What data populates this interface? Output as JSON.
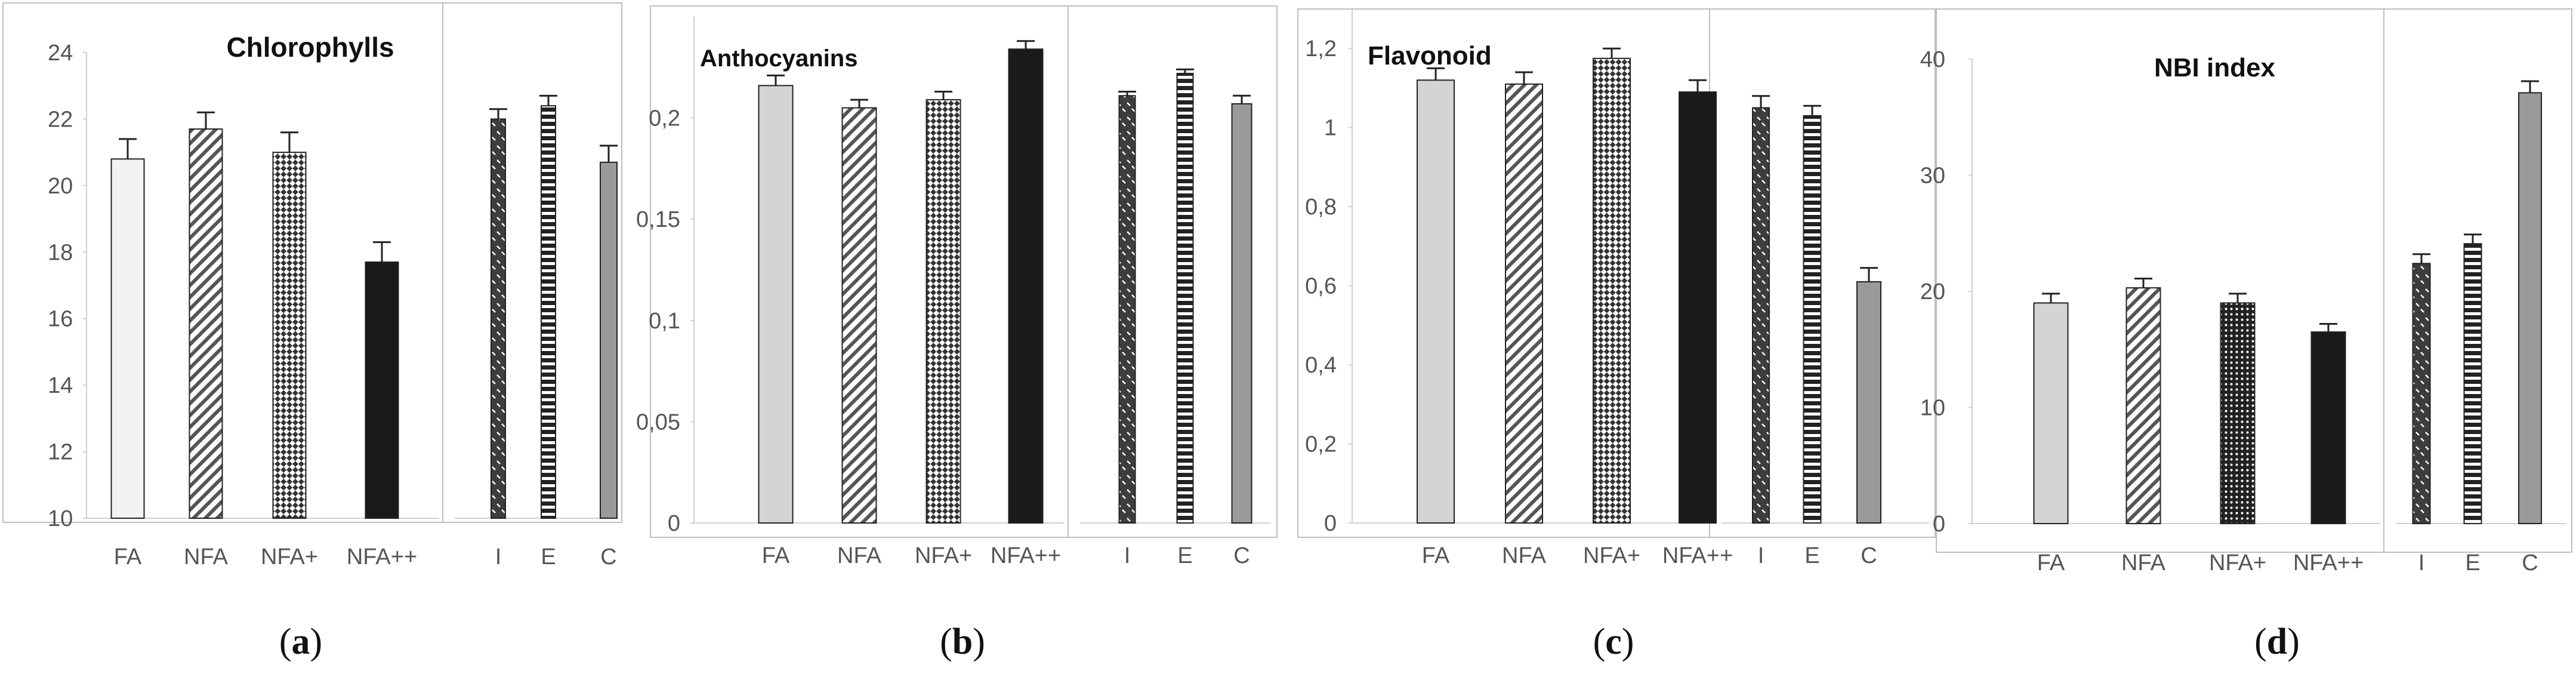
{
  "figure": {
    "captions": [
      "a",
      "b",
      "c",
      "d"
    ]
  },
  "chart_data": [
    {
      "type": "bar",
      "title": "Chlorophylls",
      "xlabel": "",
      "ylabel": "",
      "ylim": [
        10,
        24
      ],
      "yticks": [
        10,
        12,
        14,
        16,
        18,
        20,
        22,
        24
      ],
      "ytick_labels": [
        "10",
        "12",
        "14",
        "16",
        "18",
        "20",
        "22",
        "24"
      ],
      "groups": [
        {
          "categories": [
            "FA",
            "NFA",
            "NFA+",
            "NFA++"
          ],
          "values": [
            20.8,
            21.7,
            21.0,
            17.7
          ],
          "errors": [
            0.6,
            0.5,
            0.6,
            0.6
          ]
        },
        {
          "categories": [
            "I",
            "E",
            "C"
          ],
          "values": [
            22.0,
            22.4,
            20.7
          ],
          "errors": [
            0.3,
            0.3,
            0.5
          ]
        }
      ]
    },
    {
      "type": "bar",
      "title": "Anthocyanins",
      "xlabel": "",
      "ylabel": "",
      "ylim": [
        0,
        0.25
      ],
      "yticks": [
        0,
        0.05,
        0.1,
        0.15,
        0.2
      ],
      "ytick_labels": [
        "0",
        "0,05",
        "0,1",
        "0,15",
        "0,2"
      ],
      "groups": [
        {
          "categories": [
            "FA",
            "NFA",
            "NFA+",
            "NFA++"
          ],
          "values": [
            0.216,
            0.205,
            0.209,
            0.234
          ],
          "errors": [
            0.005,
            0.004,
            0.004,
            0.004
          ]
        },
        {
          "categories": [
            "I",
            "E",
            "C"
          ],
          "values": [
            0.211,
            0.222,
            0.207
          ],
          "errors": [
            0.002,
            0.002,
            0.004
          ]
        }
      ]
    },
    {
      "type": "bar",
      "title": "Flavonoid",
      "xlabel": "",
      "ylabel": "",
      "ylim": [
        0,
        1.3
      ],
      "yticks": [
        0,
        0.2,
        0.4,
        0.6,
        0.8,
        1.0,
        1.2
      ],
      "ytick_labels": [
        "0",
        "0,2",
        "0,4",
        "0,6",
        "0,8",
        "1",
        "1,2"
      ],
      "groups": [
        {
          "categories": [
            "FA",
            "NFA",
            "NFA+",
            "NFA++"
          ],
          "values": [
            1.12,
            1.11,
            1.175,
            1.09
          ],
          "errors": [
            0.03,
            0.03,
            0.025,
            0.03
          ]
        },
        {
          "categories": [
            "I",
            "E",
            "C"
          ],
          "values": [
            1.05,
            1.03,
            0.61
          ],
          "errors": [
            0.03,
            0.025,
            0.035
          ]
        }
      ]
    },
    {
      "type": "bar",
      "title": "NBI index",
      "xlabel": "",
      "ylabel": "",
      "ylim": [
        0,
        40
      ],
      "yticks": [
        0,
        10,
        20,
        30,
        40
      ],
      "ytick_labels": [
        "0",
        "10",
        "20",
        "30",
        "40"
      ],
      "groups": [
        {
          "categories": [
            "FA",
            "NFA",
            "NFA+",
            "NFA++"
          ],
          "values": [
            19.0,
            20.3,
            19.0,
            16.5
          ],
          "errors": [
            0.8,
            0.8,
            0.8,
            0.7
          ]
        },
        {
          "categories": [
            "I",
            "E",
            "C"
          ],
          "values": [
            22.4,
            24.1,
            37.1
          ],
          "errors": [
            0.8,
            0.8,
            1.0
          ]
        }
      ]
    }
  ],
  "colors": {
    "frame": "#bfbfbf",
    "axis": "#d0d0d0",
    "tick_text": "#555555",
    "title_text": "#111111",
    "bar_edge": "#222222",
    "error_bar": "#222222",
    "fill_light": "#f2f2f2",
    "fill_light_grey": "#d4d4d4",
    "fill_mid_grey": "#9a9a9a",
    "fill_dark": "#1a1a1a",
    "fill_dark_grey": "#555555"
  }
}
